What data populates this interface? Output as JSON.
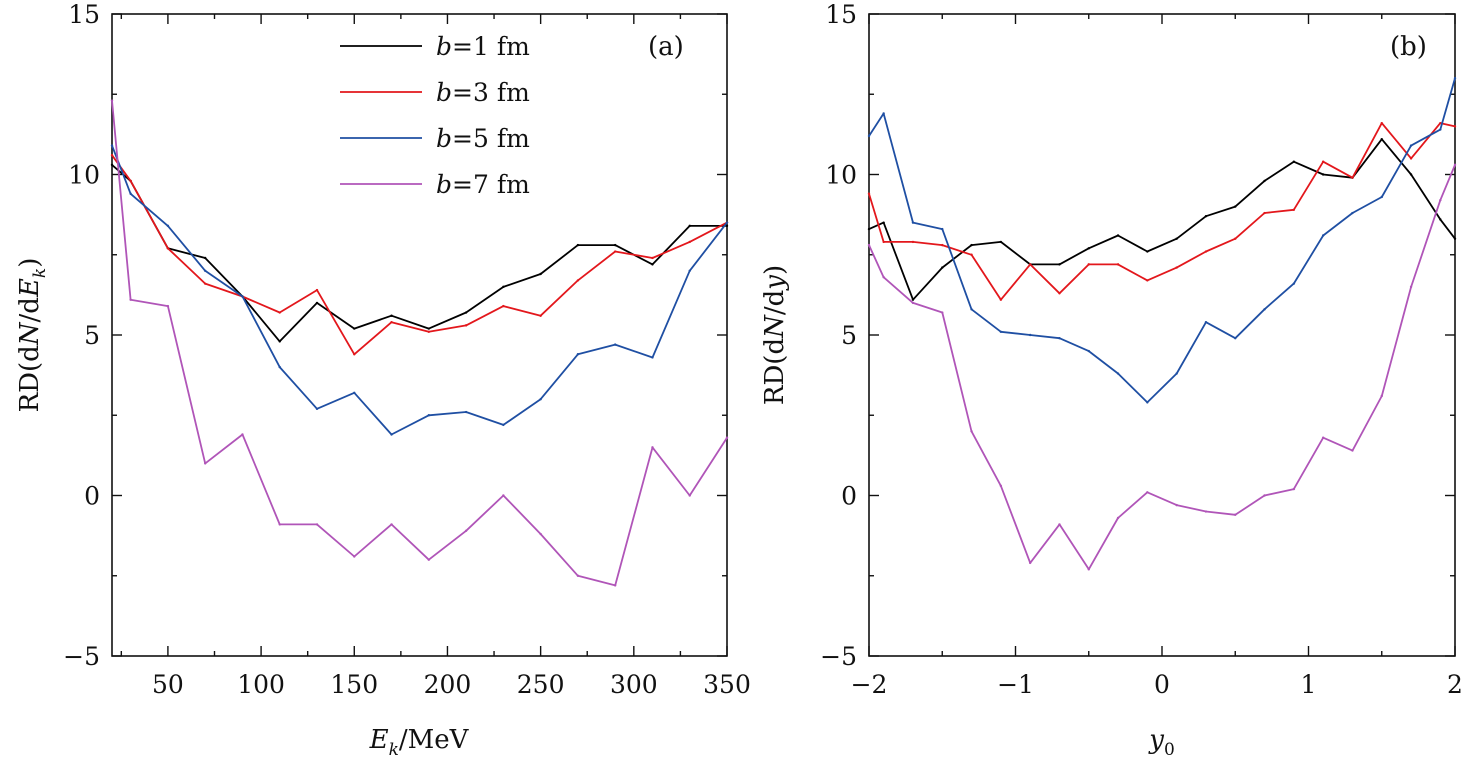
{
  "chart_data": [
    {
      "type": "line",
      "panel_label": "(a)",
      "xlim": [
        20,
        350
      ],
      "ylim": [
        -5,
        15
      ],
      "xticks": [
        50,
        100,
        150,
        200,
        250,
        300,
        350
      ],
      "xtick_labels": [
        "50",
        "100",
        "150",
        "200",
        "250",
        "300",
        "350"
      ],
      "yticks": [
        -5,
        0,
        5,
        10,
        15
      ],
      "ytick_labels": [
        "−5",
        "0",
        "5",
        "10",
        "15"
      ],
      "xlabel": {
        "main": "E",
        "sub": "k",
        "suffix": "/MeV"
      },
      "ylabel": {
        "prefix": "RD(d",
        "italic": "N",
        "mid": "/d",
        "var": "E",
        "sub": "k",
        "suffix": ")"
      },
      "legend_position": "top-center",
      "x": [
        20,
        30,
        50,
        70,
        90,
        110,
        130,
        150,
        170,
        190,
        210,
        230,
        250,
        270,
        290,
        310,
        330,
        350
      ],
      "series": [
        {
          "name": "b=1 fm",
          "color": "#000000",
          "values": [
            10.3,
            9.8,
            7.7,
            7.4,
            6.2,
            4.8,
            6.0,
            5.2,
            5.6,
            5.2,
            5.7,
            6.5,
            6.9,
            7.8,
            7.8,
            7.2,
            8.4,
            8.4
          ]
        },
        {
          "name": "b=3 fm",
          "color": "#e3171c",
          "values": [
            10.6,
            9.8,
            7.7,
            6.6,
            6.2,
            5.7,
            6.4,
            4.4,
            5.4,
            5.1,
            5.3,
            5.9,
            5.6,
            6.7,
            7.6,
            7.4,
            7.9,
            8.5
          ]
        },
        {
          "name": "b=5 fm",
          "color": "#1f4fa3",
          "values": [
            10.9,
            9.4,
            8.4,
            7.0,
            6.2,
            4.0,
            2.7,
            3.2,
            1.9,
            2.5,
            2.6,
            2.2,
            3.0,
            4.4,
            4.7,
            4.3,
            7.0,
            8.5
          ]
        },
        {
          "name": "b=7 fm",
          "color": "#b055b8",
          "values": [
            12.3,
            6.1,
            5.9,
            1.0,
            1.9,
            -0.9,
            -0.9,
            -1.9,
            -0.9,
            -2.0,
            -1.1,
            0.0,
            -1.2,
            -2.5,
            -2.8,
            1.5,
            0.0,
            1.8
          ]
        }
      ],
      "legend": [
        {
          "italic": "b",
          "text": "=1 fm",
          "color": "#000000"
        },
        {
          "italic": "b",
          "text": "=3 fm",
          "color": "#e3171c"
        },
        {
          "italic": "b",
          "text": "=5 fm",
          "color": "#1f4fa3"
        },
        {
          "italic": "b",
          "text": "=7 fm",
          "color": "#b055b8"
        }
      ]
    },
    {
      "type": "line",
      "panel_label": "(b)",
      "xlim": [
        -2,
        2
      ],
      "ylim": [
        -5,
        15
      ],
      "xticks": [
        -2,
        -1,
        0,
        1,
        2
      ],
      "xtick_labels": [
        "−2",
        "−1",
        "0",
        "1",
        "2"
      ],
      "yticks": [
        -5,
        0,
        5,
        10,
        15
      ],
      "ytick_labels": [
        "−5",
        "0",
        "5",
        "10",
        "15"
      ],
      "xlabel": {
        "main": "y",
        "sub": "0",
        "suffix": ""
      },
      "ylabel": {
        "prefix": "RD(d",
        "italic": "N",
        "mid": "/d",
        "var": "y",
        "sub": "",
        "suffix": ")"
      },
      "x": [
        -2.0,
        -1.9,
        -1.7,
        -1.5,
        -1.3,
        -1.1,
        -0.9,
        -0.7,
        -0.5,
        -0.3,
        -0.1,
        0.1,
        0.3,
        0.5,
        0.7,
        0.9,
        1.1,
        1.3,
        1.5,
        1.7,
        1.9,
        2.0
      ],
      "series": [
        {
          "name": "b=1 fm",
          "color": "#000000",
          "values": [
            8.3,
            8.5,
            6.1,
            7.1,
            7.8,
            7.9,
            7.2,
            7.2,
            7.7,
            8.1,
            7.6,
            8.0,
            8.7,
            9.0,
            9.8,
            10.4,
            10.0,
            9.9,
            11.1,
            10.0,
            8.6,
            8.0
          ]
        },
        {
          "name": "b=3 fm",
          "color": "#e3171c",
          "values": [
            9.4,
            7.9,
            7.9,
            7.8,
            7.5,
            6.1,
            7.2,
            6.3,
            7.2,
            7.2,
            6.7,
            7.1,
            7.6,
            8.0,
            8.8,
            8.9,
            10.4,
            9.9,
            11.6,
            10.5,
            11.6,
            11.5
          ]
        },
        {
          "name": "b=5 fm",
          "color": "#1f4fa3",
          "values": [
            11.2,
            11.9,
            8.5,
            8.3,
            5.8,
            5.1,
            5.0,
            4.9,
            4.5,
            3.8,
            2.9,
            3.8,
            5.4,
            4.9,
            5.8,
            6.6,
            8.1,
            8.8,
            9.3,
            10.9,
            11.4,
            13.0
          ]
        },
        {
          "name": "b=7 fm",
          "color": "#b055b8",
          "values": [
            7.8,
            6.8,
            6.0,
            5.7,
            2.0,
            0.3,
            -2.1,
            -0.9,
            -2.3,
            -0.7,
            0.1,
            -0.3,
            -0.5,
            -0.6,
            0.0,
            0.2,
            1.8,
            1.4,
            3.1,
            6.5,
            9.2,
            10.3
          ]
        }
      ]
    }
  ]
}
